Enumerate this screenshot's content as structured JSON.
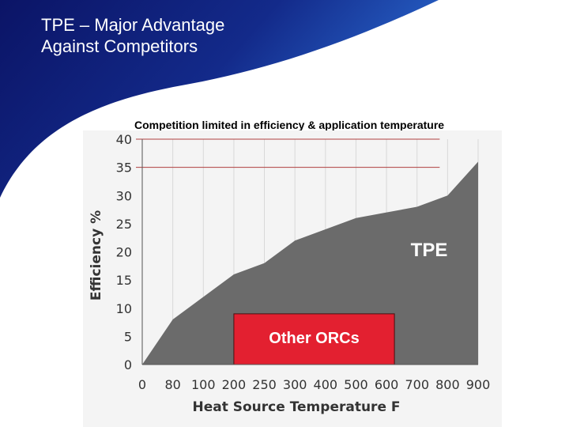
{
  "slide": {
    "title_line1": "TPE – Major Advantage",
    "title_line2": "Against Competitors"
  },
  "colors": {
    "navy": "#0b1466",
    "blue": "#1f4fb0",
    "area": "#6b6b6b",
    "other_orcs": "#e32030",
    "limit_line": "#b04040"
  },
  "chart_data": {
    "type": "area",
    "title": "Competition limited in efficiency & application temperature",
    "xlabel": "Heat Source Temperature F",
    "ylabel": "Efficiency %",
    "categories": [
      "0",
      "80",
      "100",
      "200",
      "250",
      "300",
      "400",
      "500",
      "600",
      "700",
      "800",
      "900"
    ],
    "yticks": [
      0,
      5,
      10,
      15,
      20,
      25,
      30,
      35,
      40
    ],
    "ylim": [
      0,
      40
    ],
    "series": [
      {
        "name": "TPE",
        "values": [
          0,
          8,
          12,
          16,
          18,
          22,
          24,
          26,
          27,
          28,
          30,
          36
        ]
      }
    ],
    "reference_lines": [
      35,
      40
    ],
    "other_orcs": {
      "label": "Other ORCs",
      "x_start": "200",
      "x_end": "600",
      "y_top": 9
    },
    "tpe_label": "TPE"
  }
}
